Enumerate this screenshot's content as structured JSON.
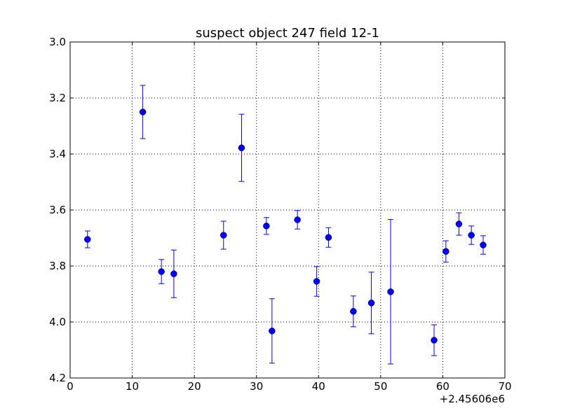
{
  "chart_data": {
    "type": "scatter",
    "title": "suspect object 247 field 12-1",
    "xlabel": "",
    "ylabel": "",
    "x_offset_label": "+2.45606e6",
    "xlim": [
      0,
      70
    ],
    "ylim": [
      4.2,
      3.0
    ],
    "y_inverted": true,
    "grid": true,
    "x_ticks": [
      0,
      10,
      20,
      30,
      40,
      50,
      60,
      70
    ],
    "x_tick_labels": [
      "0",
      "10",
      "20",
      "30",
      "40",
      "50",
      "60",
      "70"
    ],
    "y_ticks": [
      3.0,
      3.2,
      3.4,
      3.6,
      3.8,
      4.0,
      4.2
    ],
    "y_tick_labels": [
      "3.0",
      "3.2",
      "3.4",
      "3.6",
      "3.8",
      "4.0",
      "4.2"
    ],
    "series_color": "#0000ff",
    "points": [
      {
        "x": 2.8,
        "y": 3.705,
        "err": 0.03
      },
      {
        "x": 11.7,
        "y": 3.25,
        "err": 0.095
      },
      {
        "x": 14.7,
        "y": 3.82,
        "err": 0.043
      },
      {
        "x": 16.7,
        "y": 3.828,
        "err": 0.085
      },
      {
        "x": 24.7,
        "y": 3.69,
        "err": 0.05
      },
      {
        "x": 27.6,
        "y": 3.378,
        "err": 0.12
      },
      {
        "x": 31.6,
        "y": 3.657,
        "err": 0.03
      },
      {
        "x": 32.5,
        "y": 4.032,
        "err": 0.115
      },
      {
        "x": 36.6,
        "y": 3.635,
        "err": 0.033
      },
      {
        "x": 39.7,
        "y": 3.855,
        "err": 0.053
      },
      {
        "x": 41.6,
        "y": 3.698,
        "err": 0.035
      },
      {
        "x": 45.6,
        "y": 3.962,
        "err": 0.055
      },
      {
        "x": 48.5,
        "y": 3.932,
        "err": 0.11
      },
      {
        "x": 51.6,
        "y": 3.892,
        "err": 0.258
      },
      {
        "x": 58.6,
        "y": 4.065,
        "err": 0.055
      },
      {
        "x": 60.5,
        "y": 3.748,
        "err": 0.038
      },
      {
        "x": 62.6,
        "y": 3.65,
        "err": 0.04
      },
      {
        "x": 64.6,
        "y": 3.69,
        "err": 0.033
      },
      {
        "x": 66.5,
        "y": 3.725,
        "err": 0.033
      }
    ]
  }
}
